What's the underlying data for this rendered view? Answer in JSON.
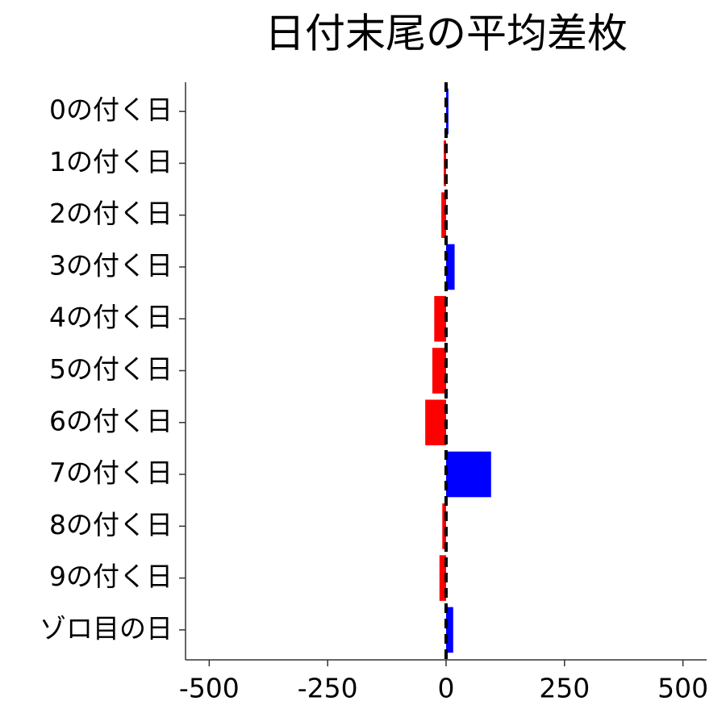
{
  "chart_data": {
    "type": "barh",
    "title": "日付末尾の平均差枚",
    "categories": [
      "0の付く日",
      "1の付く日",
      "2の付く日",
      "3の付く日",
      "4の付く日",
      "5の付く日",
      "6の付く日",
      "7の付く日",
      "8の付く日",
      "9の付く日",
      "ゾロ目の日"
    ],
    "values": [
      5,
      -5,
      -10,
      18,
      -25,
      -29,
      -44,
      95,
      -8,
      -14,
      15
    ],
    "colors": [
      "#0000ff",
      "#ff0000",
      "#ff0000",
      "#0000ff",
      "#ff0000",
      "#ff0000",
      "#ff0000",
      "#0000ff",
      "#ff0000",
      "#ff0000",
      "#0000ff"
    ],
    "xlim": [
      -550,
      550
    ],
    "xticks": [
      -500,
      -250,
      0,
      250,
      500
    ],
    "vline": 0
  }
}
